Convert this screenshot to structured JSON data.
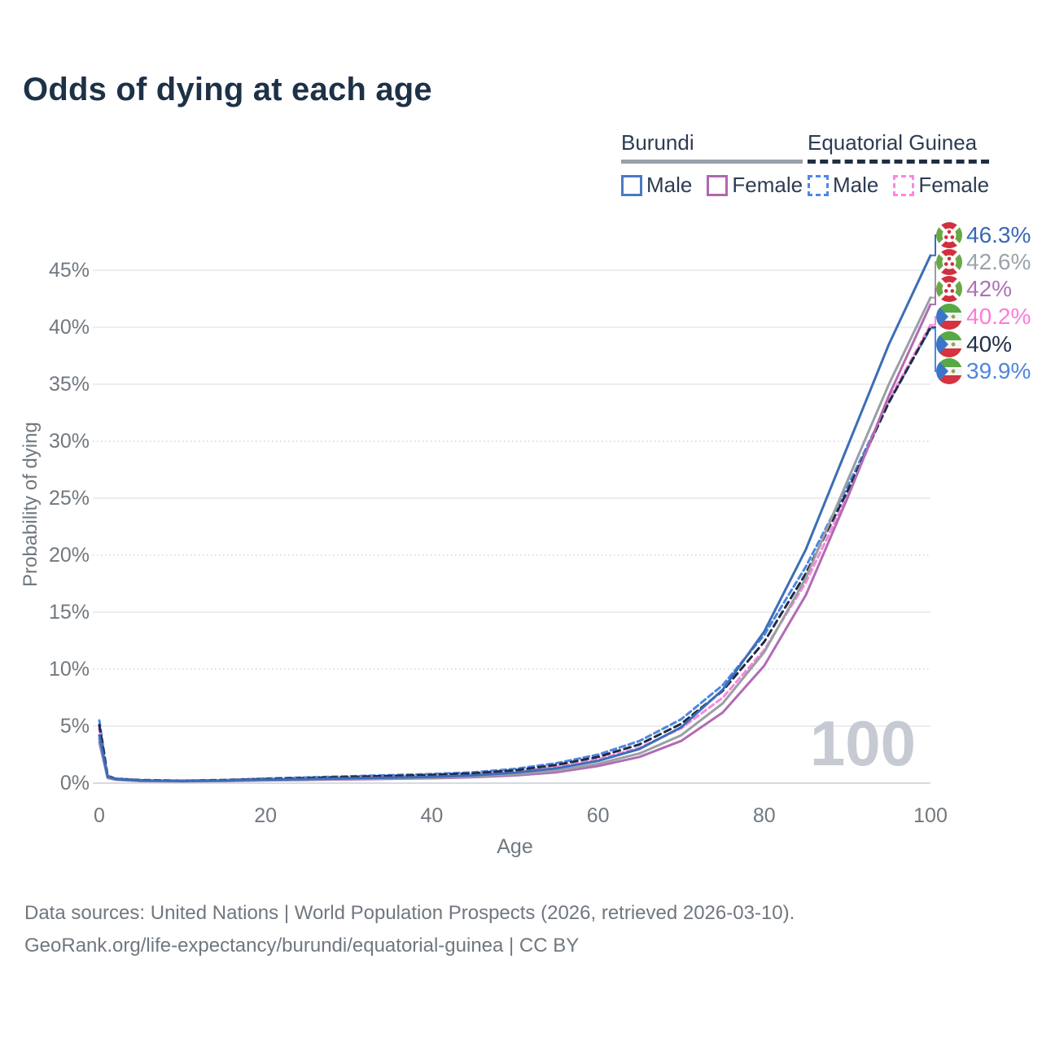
{
  "title": "Odds of dying at each age",
  "watermark": "100",
  "footer": {
    "line1": "Data sources: United Nations | World Population Prospects (2026, retrieved 2026-03-10).",
    "line2": "GeoRank.org/life-expectancy/burundi/equatorial-guinea | CC BY"
  },
  "legend": {
    "groups": [
      {
        "name": "Burundi",
        "underline_style": "solid",
        "underline_color": "#9aa0a8",
        "items": [
          {
            "label": "Male",
            "color": "#4a7ac1",
            "dashed": false
          },
          {
            "label": "Female",
            "color": "#b266b2",
            "dashed": false
          }
        ]
      },
      {
        "name": "Equatorial Guinea",
        "underline_style": "dashed",
        "underline_color": "#1f2e44",
        "items": [
          {
            "label": "Male",
            "color": "#4f87e8",
            "dashed": true
          },
          {
            "label": "Female",
            "color": "#fb86e4",
            "dashed": true
          }
        ]
      }
    ]
  },
  "chart_data": {
    "type": "line",
    "title": "Odds of dying at each age",
    "xlabel": "Age",
    "ylabel": "Probability of dying",
    "xlim": [
      0,
      100
    ],
    "ylim": [
      0,
      48
    ],
    "xticks": [
      0,
      20,
      40,
      60,
      80,
      100
    ],
    "yticks": [
      0,
      5,
      10,
      15,
      20,
      25,
      30,
      35,
      40,
      45
    ],
    "ytick_labels": [
      "0%",
      "5%",
      "10%",
      "15%",
      "20%",
      "25%",
      "30%",
      "35%",
      "40%",
      "45%"
    ],
    "grid": true,
    "x": [
      0,
      1,
      2,
      5,
      10,
      15,
      20,
      25,
      30,
      35,
      40,
      45,
      50,
      55,
      60,
      65,
      70,
      75,
      80,
      85,
      90,
      95,
      100
    ],
    "series": [
      {
        "name": "Equatorial Guinea Male",
        "country": "Equatorial Guinea",
        "sex": "Male",
        "color": "#4e86e2",
        "dash": "7 4.5",
        "flag": "equatorial-guinea",
        "end_label": "39.9%",
        "values": [
          5.5,
          0.65,
          0.4,
          0.28,
          0.22,
          0.28,
          0.4,
          0.5,
          0.6,
          0.7,
          0.8,
          0.95,
          1.25,
          1.75,
          2.5,
          3.7,
          5.6,
          8.6,
          13.0,
          19.0,
          26.0,
          33.5,
          39.9
        ]
      },
      {
        "name": "Equatorial Guinea Female",
        "country": "Equatorial Guinea",
        "sex": "Female",
        "color": "#fa85de",
        "dash": "7 4.5",
        "flag": "equatorial-guinea",
        "end_label": "40.2%",
        "values": [
          4.8,
          0.55,
          0.34,
          0.24,
          0.18,
          0.24,
          0.32,
          0.4,
          0.48,
          0.56,
          0.64,
          0.77,
          1.0,
          1.45,
          2.1,
          3.1,
          4.8,
          7.5,
          11.7,
          17.6,
          25.2,
          33.6,
          40.2
        ]
      },
      {
        "name": "Equatorial Guinea Both sexes",
        "country": "Equatorial Guinea",
        "sex": "Both",
        "color": "#1e2c42",
        "dash": "8 5.5",
        "flag": "equatorial-guinea",
        "end_label": "40%",
        "values": [
          5.1,
          0.6,
          0.37,
          0.26,
          0.2,
          0.26,
          0.36,
          0.45,
          0.54,
          0.63,
          0.72,
          0.86,
          1.12,
          1.6,
          2.3,
          3.4,
          5.2,
          8.1,
          12.4,
          18.4,
          25.6,
          33.4,
          40.0
        ]
      },
      {
        "name": "Burundi Female",
        "country": "Burundi",
        "sex": "Female",
        "color": "#b06cb4",
        "dash": null,
        "flag": "burundi",
        "end_label": "42%",
        "values": [
          3.6,
          0.45,
          0.29,
          0.18,
          0.15,
          0.18,
          0.24,
          0.28,
          0.33,
          0.38,
          0.43,
          0.52,
          0.68,
          0.95,
          1.5,
          2.3,
          3.7,
          6.2,
          10.3,
          16.5,
          25.0,
          34.0,
          42.0
        ]
      },
      {
        "name": "Burundi Both sexes",
        "country": "Burundi",
        "sex": "Both",
        "color": "#9b9fa4",
        "dash": null,
        "flag": "burundi",
        "end_label": "42.6%",
        "values": [
          3.9,
          0.5,
          0.32,
          0.2,
          0.16,
          0.2,
          0.27,
          0.32,
          0.37,
          0.42,
          0.48,
          0.58,
          0.78,
          1.1,
          1.7,
          2.6,
          4.2,
          7.0,
          11.5,
          18.0,
          26.5,
          35.0,
          42.6
        ]
      },
      {
        "name": "Burundi Male",
        "country": "Burundi",
        "sex": "Male",
        "color": "#3c6db8",
        "dash": null,
        "flag": "burundi",
        "end_label": "46.3%",
        "values": [
          4.2,
          0.55,
          0.35,
          0.22,
          0.18,
          0.22,
          0.3,
          0.36,
          0.42,
          0.48,
          0.55,
          0.68,
          0.92,
          1.3,
          1.95,
          3.0,
          4.9,
          8.2,
          13.3,
          20.5,
          29.5,
          38.5,
          46.3
        ]
      }
    ],
    "end_label_colors": {
      "46.3%": "#3a69b4",
      "42.6%": "#9ba3ab",
      "42%": "#ad73b5",
      "40.2%": "#fe7bd9",
      "40%": "#233049",
      "39.9%": "#4e86de"
    }
  }
}
